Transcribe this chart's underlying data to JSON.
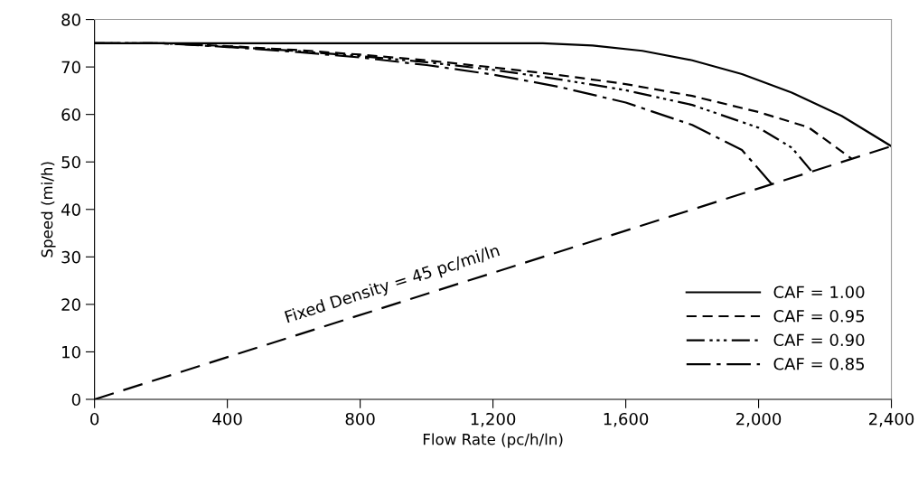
{
  "chart_data": {
    "type": "line",
    "xlabel": "Flow Rate (pc/h/ln)",
    "ylabel": "Speed (mi/h)",
    "xlim": [
      0,
      2400
    ],
    "ylim": [
      0,
      80
    ],
    "xticks": [
      0,
      400,
      800,
      {
        "value": 1200,
        "label": "1,200"
      },
      {
        "value": 1600,
        "label": "1,600"
      },
      {
        "value": 2000,
        "label": "2,000"
      },
      {
        "value": 2400,
        "label": "2,400"
      }
    ],
    "yticks": [
      0,
      10,
      20,
      30,
      40,
      50,
      60,
      70,
      80
    ],
    "grid": false,
    "legend": "bottom right",
    "marker": "none",
    "series": [
      {
        "name": "CAF = 1.00",
        "color": "#000000",
        "line_style": "solid",
        "x": [
          0,
          1350,
          1500,
          1650,
          1800,
          1950,
          2100,
          2250,
          2400
        ],
        "values": [
          75,
          75,
          74.5,
          73.4,
          71.4,
          68.5,
          64.6,
          59.7,
          53.3
        ]
      },
      {
        "name": "CAF = 0.95",
        "color": "#000000",
        "line_style": "dashed",
        "x": [
          0,
          200,
          400,
          600,
          800,
          1000,
          1200,
          1400,
          1600,
          1800,
          2000,
          2150,
          2280
        ],
        "values": [
          75,
          75,
          74.4,
          73.6,
          72.6,
          71.4,
          69.9,
          68.3,
          66.4,
          63.9,
          60.5,
          57.3,
          50.7
        ]
      },
      {
        "name": "CAF = 0.90",
        "color": "#000000",
        "line_style": "dashdotdot",
        "x": [
          0,
          200,
          400,
          600,
          800,
          1000,
          1200,
          1400,
          1600,
          1800,
          2000,
          2100,
          2160
        ],
        "values": [
          75,
          75,
          74.3,
          73.4,
          72.3,
          71,
          69.4,
          67.4,
          65.1,
          62,
          57.2,
          53,
          48
        ]
      },
      {
        "name": "CAF = 0.85",
        "color": "#000000",
        "line_style": "dashdot",
        "x": [
          0,
          200,
          400,
          600,
          800,
          1000,
          1200,
          1400,
          1600,
          1800,
          1950,
          2040
        ],
        "values": [
          75,
          75,
          74.2,
          73.2,
          72,
          70.4,
          68.4,
          65.8,
          62.5,
          57.8,
          52.5,
          45.3
        ]
      },
      {
        "color": "#000000",
        "line_style": "longdash",
        "x": [
          0,
          2400
        ],
        "values": [
          0,
          53.3
        ]
      }
    ],
    "annotations": [
      {
        "text": "Fixed Density = 45 pc/mi/ln",
        "x": 920,
        "y": 20.4
      }
    ]
  }
}
